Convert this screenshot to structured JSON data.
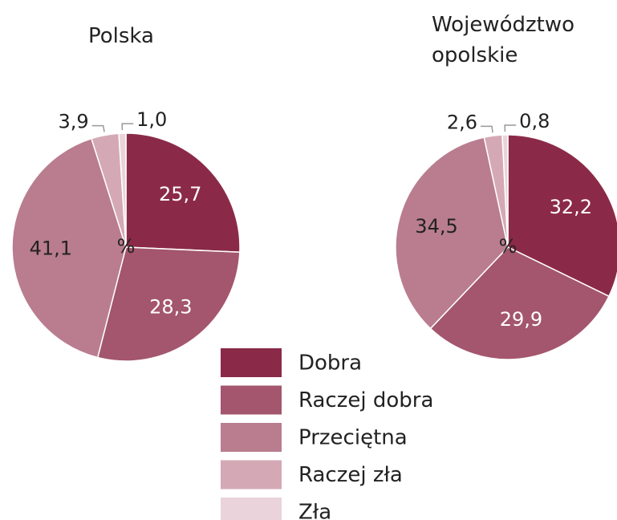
{
  "chart_data": [
    {
      "type": "pie",
      "title": "Polska",
      "center_label": "%",
      "values": [
        25.7,
        28.3,
        41.1,
        3.9,
        1.0
      ],
      "value_labels": [
        "25,7",
        "28,3",
        "41,1",
        "3,9",
        "1,0"
      ]
    },
    {
      "type": "pie",
      "title": "Województwo opolskie",
      "center_label": "%",
      "values": [
        32.2,
        29.9,
        34.5,
        2.6,
        0.8
      ],
      "value_labels": [
        "32,2",
        "29,9",
        "34,5",
        "2,6",
        "0,8"
      ]
    }
  ],
  "legend": {
    "categories": [
      "Dobra",
      "Raczej dobra",
      "Przeciętna",
      "Raczej zła",
      "Zła"
    ],
    "colors": [
      "#8b2a48",
      "#a3566d",
      "#b97d8f",
      "#d4a9b5",
      "#ead3da"
    ]
  }
}
